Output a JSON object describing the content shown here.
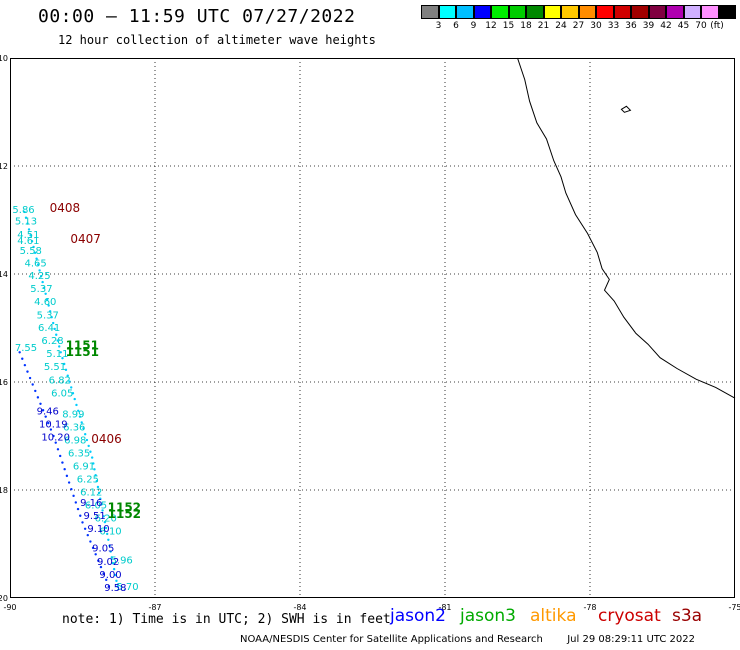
{
  "header": {
    "title": "00:00 – 11:59 UTC 07/27/2022",
    "subtitle": "12 hour collection of altimeter wave heights"
  },
  "scale": {
    "unit": "(ft)",
    "colors": [
      "#808080",
      "#00ffff",
      "#00bfff",
      "#0000ff",
      "#00ee00",
      "#00cc00",
      "#008800",
      "#ffff00",
      "#ffc800",
      "#ff8c00",
      "#ff0000",
      "#d00000",
      "#a00000",
      "#800040",
      "#b000b0",
      "#d0b0ff",
      "#ff90ff",
      "#000000"
    ],
    "labels": [
      "3",
      "6",
      "9",
      "12",
      "15",
      "18",
      "21",
      "24",
      "27",
      "30",
      "33",
      "36",
      "39",
      "42",
      "45",
      "70"
    ]
  },
  "axes": {
    "x_labels": [
      "-90",
      "-87",
      "-84",
      "-81",
      "-78",
      "-75"
    ],
    "y_labels": [
      "-10",
      "-12",
      "-14",
      "-16",
      "-18",
      "-20"
    ],
    "xlim": [
      -90,
      -75
    ],
    "ylim": [
      -20,
      -10
    ]
  },
  "cryosat_times": [
    {
      "text": "0408",
      "lon": -89.18,
      "lat": -12.85
    },
    {
      "text": "0407",
      "lon": -88.75,
      "lat": -13.43
    },
    {
      "text": "0406",
      "lon": -88.32,
      "lat": -17.13
    }
  ],
  "jason3_times": [
    {
      "text": "1151",
      "lon": -88.85,
      "lat": -15.4
    },
    {
      "text": "1151",
      "lon": -88.85,
      "lat": -15.52
    },
    {
      "text": "1152",
      "lon": -87.98,
      "lat": -18.4
    },
    {
      "text": "1152",
      "lon": -87.98,
      "lat": -18.52
    }
  ],
  "wave_labels_cyan": [
    {
      "text": "5.86",
      "lon": -89.95,
      "lat": -12.87
    },
    {
      "text": "5.13",
      "lon": -89.9,
      "lat": -13.08
    },
    {
      "text": "4.51",
      "lon": -89.85,
      "lat": -13.33
    },
    {
      "text": "4.61",
      "lon": -89.85,
      "lat": -13.44
    },
    {
      "text": "5.58",
      "lon": -89.8,
      "lat": -13.63
    },
    {
      "text": "4.65",
      "lon": -89.7,
      "lat": -13.86
    },
    {
      "text": "4.25",
      "lon": -89.62,
      "lat": -14.09
    },
    {
      "text": "5.37",
      "lon": -89.58,
      "lat": -14.33
    },
    {
      "text": "4.60",
      "lon": -89.5,
      "lat": -14.57
    },
    {
      "text": "5.37",
      "lon": -89.45,
      "lat": -14.82
    },
    {
      "text": "6.41",
      "lon": -89.42,
      "lat": -15.06
    },
    {
      "text": "6.28",
      "lon": -89.35,
      "lat": -15.3
    },
    {
      "text": "7.55",
      "lon": -89.9,
      "lat": -15.43
    },
    {
      "text": "5.11",
      "lon": -89.25,
      "lat": -15.54
    },
    {
      "text": "5.51",
      "lon": -89.3,
      "lat": -15.78
    },
    {
      "text": "6.82",
      "lon": -89.2,
      "lat": -16.03
    },
    {
      "text": "6.05",
      "lon": -89.15,
      "lat": -16.27
    },
    {
      "text": "8.99",
      "lon": -88.92,
      "lat": -16.66
    },
    {
      "text": "6.36",
      "lon": -88.9,
      "lat": -16.9
    },
    {
      "text": "6.98",
      "lon": -88.88,
      "lat": -17.14
    },
    {
      "text": "6.35",
      "lon": -88.8,
      "lat": -17.38
    },
    {
      "text": "6.91",
      "lon": -88.7,
      "lat": -17.62
    },
    {
      "text": "6.25",
      "lon": -88.62,
      "lat": -17.86
    },
    {
      "text": "6.12",
      "lon": -88.55,
      "lat": -18.1
    },
    {
      "text": "6.05",
      "lon": -88.45,
      "lat": -18.34
    },
    {
      "text": "6.20",
      "lon": -88.25,
      "lat": -18.58
    },
    {
      "text": "6.10",
      "lon": -88.15,
      "lat": -18.82
    },
    {
      "text": "5.96",
      "lon": -87.92,
      "lat": -19.36
    },
    {
      "text": "5.70",
      "lon": -87.8,
      "lat": -19.85
    }
  ],
  "wave_labels_blue": [
    {
      "text": "9.46",
      "lon": -89.45,
      "lat": -16.6
    },
    {
      "text": "10.19",
      "lon": -89.4,
      "lat": -16.84
    },
    {
      "text": "10.20",
      "lon": -89.35,
      "lat": -17.08
    },
    {
      "text": "9.16",
      "lon": -88.55,
      "lat": -18.3
    },
    {
      "text": "9.51",
      "lon": -88.48,
      "lat": -18.54
    },
    {
      "text": "9.10",
      "lon": -88.4,
      "lat": -18.78
    },
    {
      "text": "9.05",
      "lon": -88.3,
      "lat": -19.14
    },
    {
      "text": "9.02",
      "lon": -88.2,
      "lat": -19.39
    },
    {
      "text": "9.00",
      "lon": -88.15,
      "lat": -19.63
    },
    {
      "text": "9.58",
      "lon": -88.05,
      "lat": -19.87
    }
  ],
  "legend": {
    "note": "note: 1) Time is in UTC; 2) SWH is in feet",
    "items": [
      {
        "label": "jason2",
        "color": "#0000ff"
      },
      {
        "label": "jason3",
        "color": "#00aa00"
      },
      {
        "label": "altika",
        "color": "#ff9900"
      },
      {
        "label": "cryosat",
        "color": "#cc0000"
      },
      {
        "label": "s3a",
        "color": "#990000"
      }
    ]
  },
  "footer": {
    "agency": "NOAA/NESDIS Center for Satellite Applications and Research",
    "timestamp": "Jul 29 08:29:11 UTC 2022"
  }
}
